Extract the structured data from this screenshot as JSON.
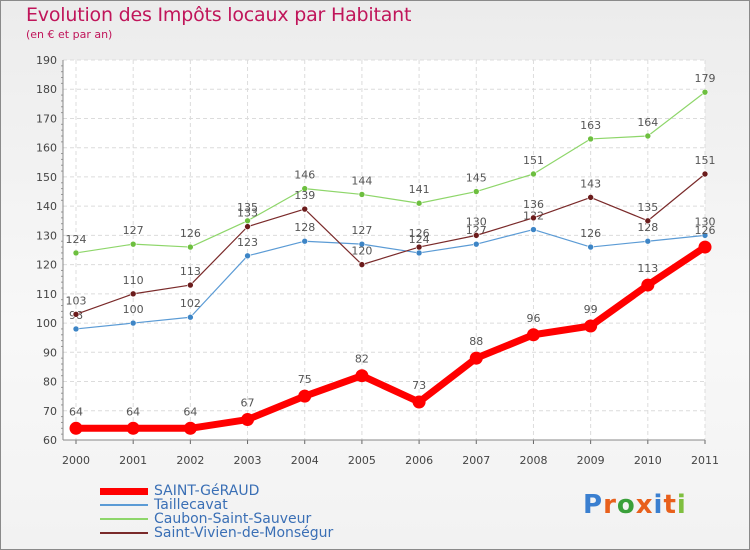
{
  "title": "Evolution des Impôts locaux par Habitant",
  "subtitle": "(en € et par an)",
  "logo": {
    "chars": [
      "P",
      "r",
      "o",
      "x",
      "i",
      "t",
      "i"
    ],
    "colors": [
      "#3a7fd0",
      "#e8601c",
      "#3aa03a",
      "#e8601c",
      "#3a7fd0",
      "#e8601c",
      "#7fbf3f"
    ]
  },
  "chart_data": {
    "type": "line",
    "title": "Evolution des Impôts locaux par Habitant",
    "ylabel": "(en € et par an)",
    "xlabel": "",
    "x": [
      "2000",
      "2001",
      "2002",
      "2003",
      "2004",
      "2005",
      "2006",
      "2007",
      "2008",
      "2009",
      "2010",
      "2011"
    ],
    "ylim": [
      60,
      190
    ],
    "yticks": [
      60,
      70,
      80,
      90,
      100,
      110,
      120,
      130,
      140,
      150,
      160,
      170,
      180,
      190
    ],
    "grid": true,
    "legend_position": "bottom-left",
    "series": [
      {
        "name": "Taillecavat",
        "color": "#5b9bd5",
        "point_color": "#3d85c6",
        "width": 1.2,
        "values": [
          98,
          100,
          102,
          123,
          128,
          127,
          124,
          127,
          132,
          126,
          128,
          130
        ],
        "labels": [
          "98",
          "100",
          "102",
          "123",
          "128",
          "127",
          "124",
          "127",
          "132",
          "126",
          "128",
          "130"
        ]
      },
      {
        "name": "Caubon-Saint-Sauveur",
        "color": "#8ed66a",
        "point_color": "#6dbf3f",
        "width": 1.2,
        "values": [
          124,
          127,
          126,
          135,
          146,
          144,
          141,
          145,
          151,
          163,
          164,
          179
        ],
        "labels": [
          "124",
          "127",
          "126",
          "135",
          "146",
          "144",
          "141",
          "145",
          "151",
          "163",
          "164",
          "179"
        ]
      },
      {
        "name": "Saint-Vivien-de-Monségur",
        "color": "#7a2a2a",
        "point_color": "#6b1c1c",
        "width": 1.2,
        "values": [
          103,
          110,
          113,
          133,
          139,
          120,
          126,
          130,
          136,
          143,
          135,
          151
        ],
        "labels": [
          "103",
          "110",
          "113",
          "133",
          "139",
          "120",
          "126",
          "130",
          "136",
          "143",
          "135",
          "151"
        ]
      },
      {
        "name": "SAINT-GéRAUD",
        "color": "#ff0000",
        "point_color": "#ff0000",
        "width": 7,
        "values": [
          64,
          64,
          64,
          67,
          75,
          82,
          73,
          88,
          96,
          99,
          113,
          126
        ],
        "labels": [
          "64",
          "64",
          "64",
          "67",
          "75",
          "82",
          "73",
          "88",
          "96",
          "99",
          "113",
          "126"
        ]
      }
    ],
    "legend_order": [
      "SAINT-GéRAUD",
      "Taillecavat",
      "Caubon-Saint-Sauveur",
      "Saint-Vivien-de-Monségur"
    ]
  }
}
